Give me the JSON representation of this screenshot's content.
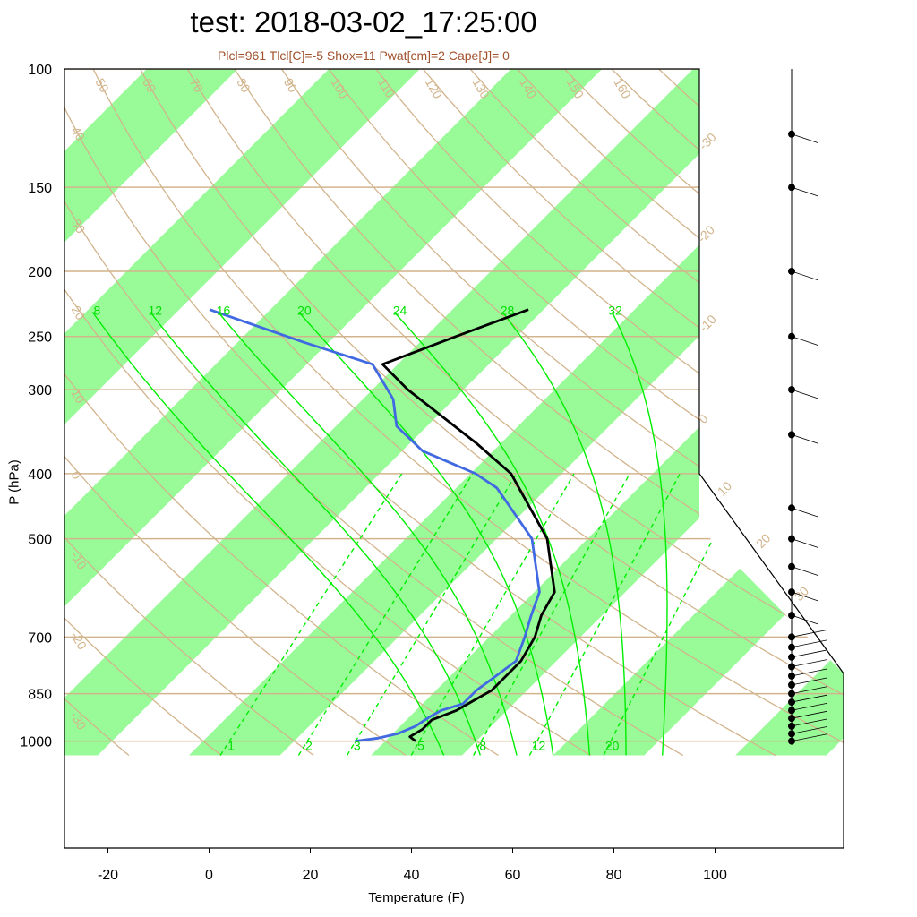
{
  "title": "test: 2018-03-02_17:25:00",
  "subtitle": "Plcl=961 Tlcl[C]=-5 Shox=11 Pwat[cm]=2 Cape[J]= 0",
  "colors": {
    "band": "#98fb98",
    "isobar": "#d2b48c",
    "adiabat": "#d2b48c",
    "moist_adiabat": "#00ee00",
    "mixing_ratio": "#00ee00",
    "temperature": "#000000",
    "dewpoint": "#4169e1",
    "wind": "#000000"
  },
  "chart_data": {
    "type": "skew-t log-p sounding",
    "title": "test: 2018-03-02_17:25:00",
    "subtitle": "Plcl=961 Tlcl[C]=-5 Shox=11 Pwat[cm]=2 Cape[J]= 0",
    "xlabel": "Temperature (F)",
    "ylabel": "P (hPa)",
    "x_ticks": [
      -20,
      0,
      20,
      40,
      60,
      80,
      100
    ],
    "y_ticks": [
      100,
      150,
      200,
      250,
      300,
      400,
      500,
      700,
      850,
      1000
    ],
    "xlim_F_at_1050hPa": [
      -28,
      120
    ],
    "ylim_hPa": [
      1050,
      100
    ],
    "skewed_isotherm_labels_C": [
      -30,
      -20,
      -10,
      0,
      10,
      20,
      30
    ],
    "dry_adiabat_labels": [
      -30,
      -20,
      -10,
      0,
      10,
      20,
      30,
      40,
      50,
      60,
      70,
      80,
      90,
      100,
      110,
      120,
      130,
      140,
      150,
      160
    ],
    "moist_adiabat_labels": [
      8,
      12,
      16,
      20,
      24,
      28,
      32
    ],
    "mixing_ratio_labels": [
      1,
      2,
      3,
      5,
      8,
      12,
      20
    ],
    "temperature_profile": {
      "name": "Temperature",
      "points": [
        {
          "p": 1000,
          "t": 38
        },
        {
          "p": 985,
          "t": 36
        },
        {
          "p": 960,
          "t": 37
        },
        {
          "p": 930,
          "t": 37
        },
        {
          "p": 900,
          "t": 40
        },
        {
          "p": 880,
          "t": 41
        },
        {
          "p": 860,
          "t": 42
        },
        {
          "p": 840,
          "t": 43
        },
        {
          "p": 800,
          "t": 43
        },
        {
          "p": 760,
          "t": 43
        },
        {
          "p": 700,
          "t": 41
        },
        {
          "p": 650,
          "t": 38
        },
        {
          "p": 600,
          "t": 36
        },
        {
          "p": 500,
          "t": 24
        },
        {
          "p": 400,
          "t": 4
        },
        {
          "p": 360,
          "t": -9
        },
        {
          "p": 300,
          "t": -33
        },
        {
          "p": 275,
          "t": -43
        },
        {
          "p": 250,
          "t": -34
        },
        {
          "p": 228,
          "t": -25
        }
      ]
    },
    "dewpoint_profile": {
      "name": "Dewpoint",
      "points": [
        {
          "p": 1000,
          "t": 26
        },
        {
          "p": 990,
          "t": 30
        },
        {
          "p": 975,
          "t": 33
        },
        {
          "p": 950,
          "t": 35
        },
        {
          "p": 920,
          "t": 36
        },
        {
          "p": 900,
          "t": 37
        },
        {
          "p": 880,
          "t": 40
        },
        {
          "p": 840,
          "t": 40
        },
        {
          "p": 800,
          "t": 41
        },
        {
          "p": 760,
          "t": 42
        },
        {
          "p": 700,
          "t": 39
        },
        {
          "p": 650,
          "t": 36
        },
        {
          "p": 600,
          "t": 33
        },
        {
          "p": 500,
          "t": 21
        },
        {
          "p": 420,
          "t": 4
        },
        {
          "p": 400,
          "t": -3
        },
        {
          "p": 370,
          "t": -18
        },
        {
          "p": 340,
          "t": -28
        },
        {
          "p": 310,
          "t": -34
        },
        {
          "p": 275,
          "t": -45
        },
        {
          "p": 255,
          "t": -63
        },
        {
          "p": 228,
          "t": -88
        }
      ]
    },
    "wind_levels_hPa": [
      1000,
      975,
      950,
      925,
      900,
      875,
      850,
      825,
      800,
      775,
      750,
      725,
      700,
      650,
      600,
      550,
      500,
      450,
      350,
      300,
      250,
      200,
      150,
      125
    ]
  }
}
